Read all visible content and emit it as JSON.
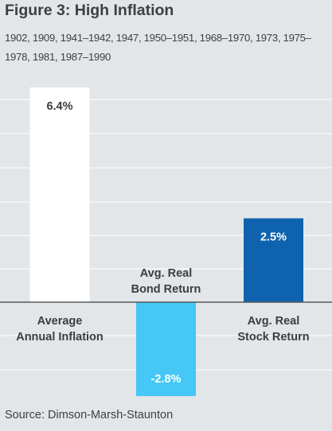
{
  "chart_data": {
    "type": "bar",
    "title": "Figure 3: High Inflation",
    "subtitle": "1902, 1909, 1941–1942, 1947, 1950–1951, 1968–1970, 1973, 1975–1978, 1981, 1987–1990",
    "source": "Source: Dimson-Marsh-Staunton",
    "categories": [
      "Average Annual Inflation",
      "Avg. Real Bond Return",
      "Avg. Real Stock Return"
    ],
    "category_lines": [
      [
        "Average",
        "Annual Inflation"
      ],
      [
        "Avg. Real",
        "Bond Return"
      ],
      [
        "Avg. Real",
        "Stock Return"
      ]
    ],
    "values": [
      6.4,
      -2.8,
      2.5
    ],
    "value_labels": [
      "6.4%",
      "-2.8%",
      "2.5%"
    ],
    "colors": [
      "#ffffff",
      "#45c8f5",
      "#0f63ae"
    ],
    "value_label_colors": [
      "#3b3d40",
      "#ffffff",
      "#ffffff"
    ],
    "axis_color": "#55585c",
    "grid_color": "#ffffff",
    "grid": true
  }
}
